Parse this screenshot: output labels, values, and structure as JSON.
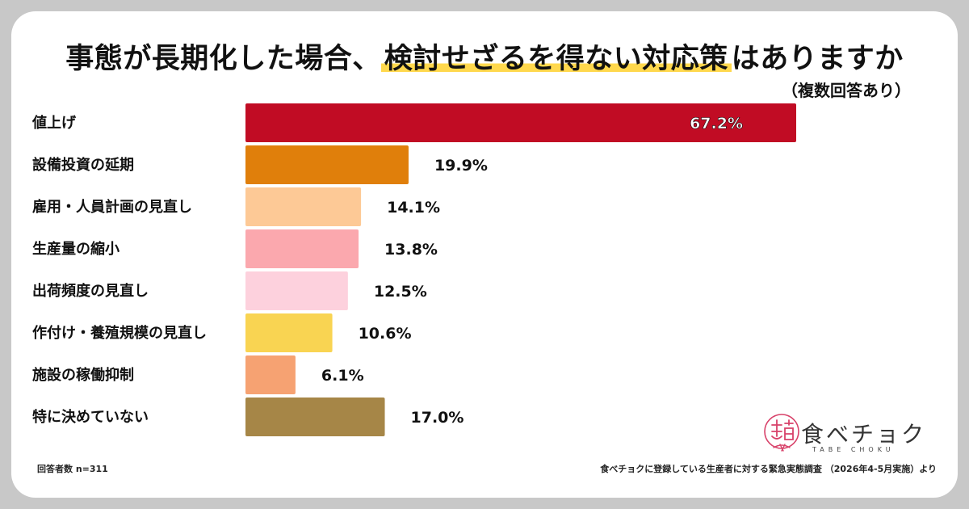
{
  "title": {
    "prefix": "事態が長期化した場合、",
    "highlight": "検討せざるを得ない対応策",
    "suffix": "はありますか"
  },
  "subtitle": "（複数回答あり）",
  "footer": {
    "respondents": "回答者数 n=311",
    "source": "食べチョクに登録している生産者に対する緊急実態調査 （2026年4-5月実施）より"
  },
  "logo": {
    "text": "食べチョク",
    "sub": "TABE CHOKU",
    "icon": "tabechoku-logo-icon"
  },
  "chart_data": {
    "type": "bar",
    "orientation": "horizontal",
    "categories": [
      "値上げ",
      "設備投資の延期",
      "雇用・人員計画の見直し",
      "生産量の縮小",
      "出荷頻度の見直し",
      "作付け・養殖規模の見直し",
      "施設の稼働抑制",
      "特に決めていない"
    ],
    "values": [
      67.2,
      19.9,
      14.1,
      13.8,
      12.5,
      10.6,
      6.1,
      17.0
    ],
    "value_labels": [
      "67.2%",
      "19.9%",
      "14.1%",
      "13.8%",
      "12.5%",
      "10.6%",
      "6.1%",
      "17.0%"
    ],
    "colors": [
      "#c10c24",
      "#e07f0b",
      "#fdc996",
      "#fba8ae",
      "#fdd1dd",
      "#f9d452",
      "#f6a272",
      "#a68647"
    ],
    "xlim": [
      0,
      67.2
    ],
    "grid": false,
    "legend": "none"
  }
}
